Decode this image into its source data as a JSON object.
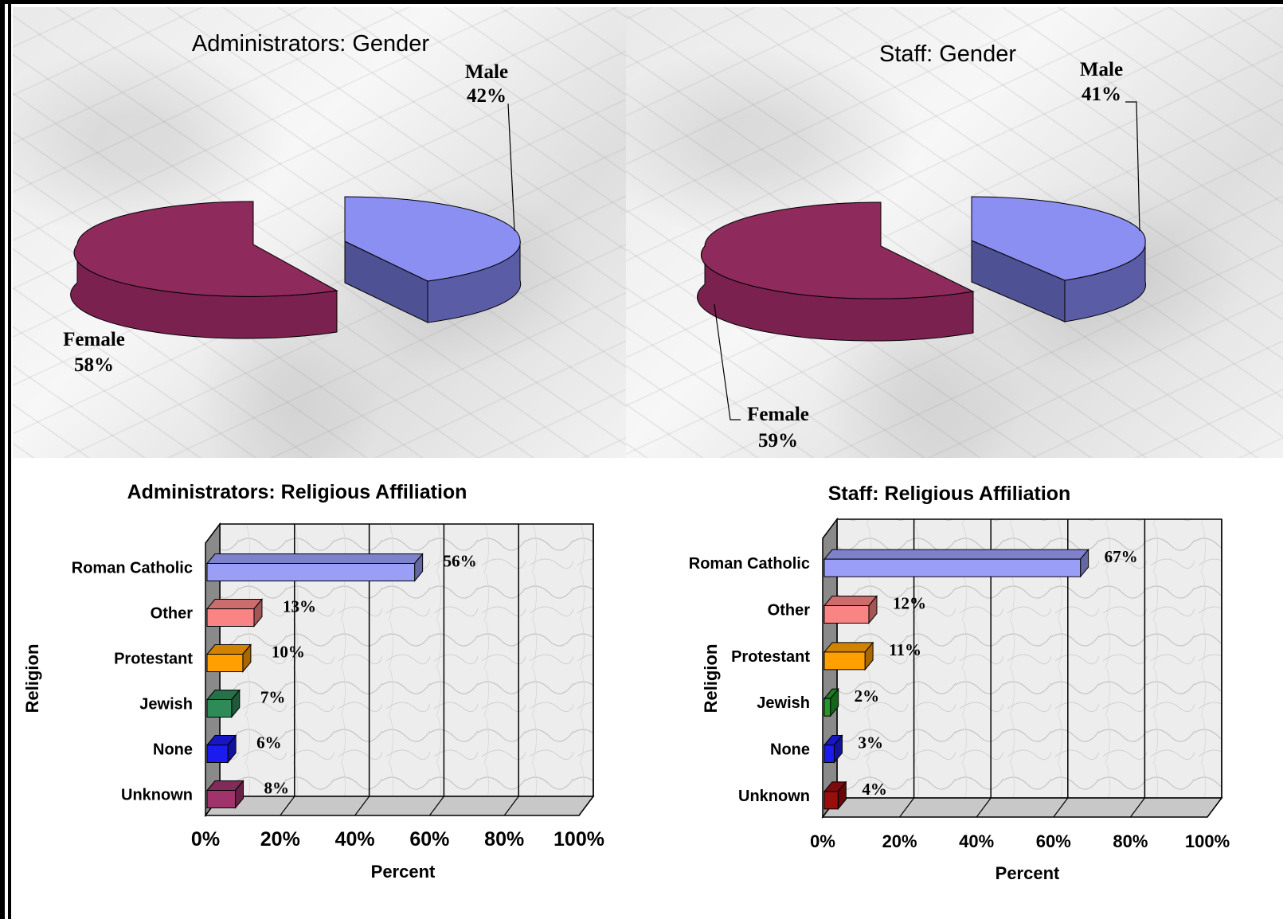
{
  "chart_data": [
    {
      "type": "pie",
      "title": "Administrators: Gender",
      "slices": [
        {
          "label": "Male",
          "value": 42,
          "value_label": "42%",
          "color": "#8b8ff2"
        },
        {
          "label": "Female",
          "value": 58,
          "value_label": "58%",
          "color": "#8e2a5c"
        }
      ],
      "three_d": true
    },
    {
      "type": "pie",
      "title": "Staff: Gender",
      "slices": [
        {
          "label": "Male",
          "value": 41,
          "value_label": "41%",
          "color": "#8b8ff2"
        },
        {
          "label": "Female",
          "value": 59,
          "value_label": "59%",
          "color": "#8e2a5c"
        }
      ],
      "three_d": true
    },
    {
      "type": "bar",
      "orientation": "horizontal",
      "title": "Administrators: Religious Affiliation",
      "categories": [
        "Roman Catholic",
        "Other",
        "Protestant",
        "Jewish",
        "None",
        "Unknown"
      ],
      "values": [
        56,
        13,
        10,
        7,
        6,
        8
      ],
      "value_labels": [
        "56%",
        "13%",
        "10%",
        "7%",
        "6%",
        "8%"
      ],
      "colors": [
        "#9a9ef6",
        "#fa8484",
        "#ffa000",
        "#2e8a57",
        "#1b1bf0",
        "#a0336c"
      ],
      "xlabel": "Percent",
      "ylabel": "Religion",
      "xticks": [
        "0%",
        "20%",
        "40%",
        "60%",
        "80%",
        "100%"
      ],
      "xlim": [
        0,
        100
      ],
      "grid": true
    },
    {
      "type": "bar",
      "orientation": "horizontal",
      "title": "Staff: Religious Affiliation",
      "categories": [
        "Roman Catholic",
        "Other",
        "Protestant",
        "Jewish",
        "None",
        "Unknown"
      ],
      "values": [
        67,
        12,
        11,
        2,
        3,
        4
      ],
      "value_labels": [
        "67%",
        "12%",
        "11%",
        "2%",
        "3%",
        "4%"
      ],
      "colors": [
        "#9a9ef6",
        "#fa8484",
        "#ffa000",
        "#1f9a2a",
        "#1b1bf0",
        "#9a0d0d"
      ],
      "xlabel": "Percent",
      "ylabel": "Religion",
      "xticks": [
        "0%",
        "20%",
        "40%",
        "60%",
        "80%",
        "100%"
      ],
      "xlim": [
        0,
        100
      ],
      "grid": true
    }
  ]
}
